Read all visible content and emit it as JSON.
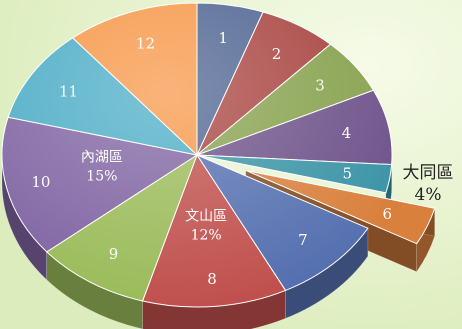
{
  "chart_data": {
    "type": "pie",
    "title": "",
    "style": "3d-exploded",
    "slices": [
      {
        "label": "1",
        "value": 5.5,
        "color": "#4e6391",
        "callout": ""
      },
      {
        "label": "2",
        "value": 6.5,
        "color": "#a8433f",
        "callout": ""
      },
      {
        "label": "3",
        "value": 6.0,
        "color": "#86a14c",
        "callout": ""
      },
      {
        "label": "4",
        "value": 8.0,
        "color": "#6d5189",
        "callout": ""
      },
      {
        "label": "5",
        "value": 3.0,
        "color": "#3a93a6",
        "callout": ""
      },
      {
        "label": "6",
        "value": 4.0,
        "color": "#d9803d",
        "callout": "大同區\n4%",
        "exploded": true
      },
      {
        "label": "7",
        "value": 9.5,
        "color": "#5570b0",
        "callout": ""
      },
      {
        "label": "8",
        "value": 12.0,
        "color": "#c0504d",
        "callout": "文山區\n12%"
      },
      {
        "label": "9",
        "value": 9.5,
        "color": "#9bbb59",
        "callout": ""
      },
      {
        "label": "10",
        "value": 15.0,
        "color": "#8064a2",
        "callout": "內湖區\n15%"
      },
      {
        "label": "11",
        "value": 10.0,
        "color": "#4bacc6",
        "callout": ""
      },
      {
        "label": "12",
        "value": 11.0,
        "color": "#f79646",
        "callout": ""
      }
    ]
  }
}
